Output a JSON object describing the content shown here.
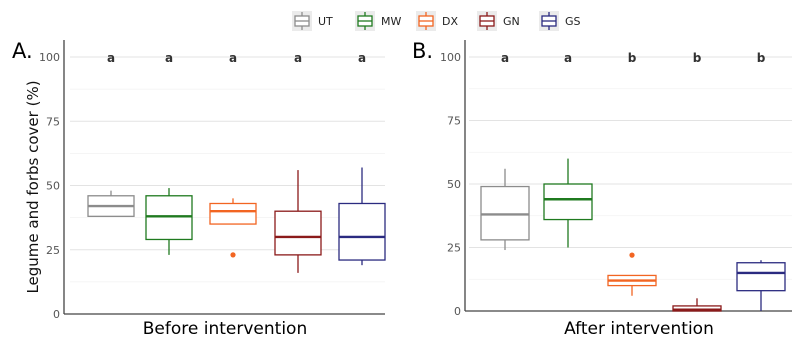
{
  "legend": {
    "items": [
      {
        "label": "UT",
        "color": "#8c8c8c"
      },
      {
        "label": "MW",
        "color": "#1f7a1f"
      },
      {
        "label": "DX",
        "color": "#f26522"
      },
      {
        "label": "GN",
        "color": "#8b1a1a"
      },
      {
        "label": "GS",
        "color": "#2b2b80"
      }
    ],
    "placement": "top-center"
  },
  "chart_data": [
    {
      "type": "box",
      "panel_label": "A.",
      "xlabel": "Before intervention",
      "ylabel": "Legume and forbs cover (%)",
      "ylim": [
        0,
        100
      ],
      "yticks": [
        0,
        25,
        50,
        75,
        100
      ],
      "grid": true,
      "categories": [
        "UT",
        "MW",
        "DX",
        "GN",
        "GS"
      ],
      "boxes": [
        {
          "group": "UT",
          "min": 38,
          "q1": 38,
          "median": 42,
          "q3": 46,
          "max": 48,
          "outliers": [],
          "letter": "a"
        },
        {
          "group": "MW",
          "min": 23,
          "q1": 29,
          "median": 38,
          "q3": 46,
          "max": 49,
          "outliers": [],
          "letter": "a"
        },
        {
          "group": "DX",
          "min": 35,
          "q1": 35,
          "median": 40,
          "q3": 43,
          "max": 45,
          "outliers": [
            23
          ],
          "letter": "a"
        },
        {
          "group": "GN",
          "min": 16,
          "q1": 23,
          "median": 30,
          "q3": 40,
          "max": 56,
          "outliers": [],
          "letter": "a"
        },
        {
          "group": "GS",
          "min": 19,
          "q1": 21,
          "median": 30,
          "q3": 43,
          "max": 57,
          "outliers": [],
          "letter": "a"
        }
      ]
    },
    {
      "type": "box",
      "panel_label": "B.",
      "xlabel": "After intervention",
      "ylabel": "",
      "ylim": [
        0,
        100
      ],
      "yticks": [
        0,
        25,
        50,
        75,
        100
      ],
      "grid": true,
      "categories": [
        "UT",
        "MW",
        "DX",
        "GN",
        "GS"
      ],
      "boxes": [
        {
          "group": "UT",
          "min": 24,
          "q1": 28,
          "median": 38,
          "q3": 49,
          "max": 56,
          "outliers": [],
          "letter": "a"
        },
        {
          "group": "MW",
          "min": 25,
          "q1": 36,
          "median": 44,
          "q3": 50,
          "max": 60,
          "outliers": [],
          "letter": "a"
        },
        {
          "group": "DX",
          "min": 6,
          "q1": 10,
          "median": 12,
          "q3": 14,
          "max": 14,
          "outliers": [
            22
          ],
          "letter": "b"
        },
        {
          "group": "GN",
          "min": 0,
          "q1": 0,
          "median": 0.5,
          "q3": 2,
          "max": 5,
          "outliers": [],
          "letter": "b"
        },
        {
          "group": "GS",
          "min": 0,
          "q1": 8,
          "median": 15,
          "q3": 19,
          "max": 20,
          "outliers": [],
          "letter": "b"
        }
      ]
    }
  ]
}
